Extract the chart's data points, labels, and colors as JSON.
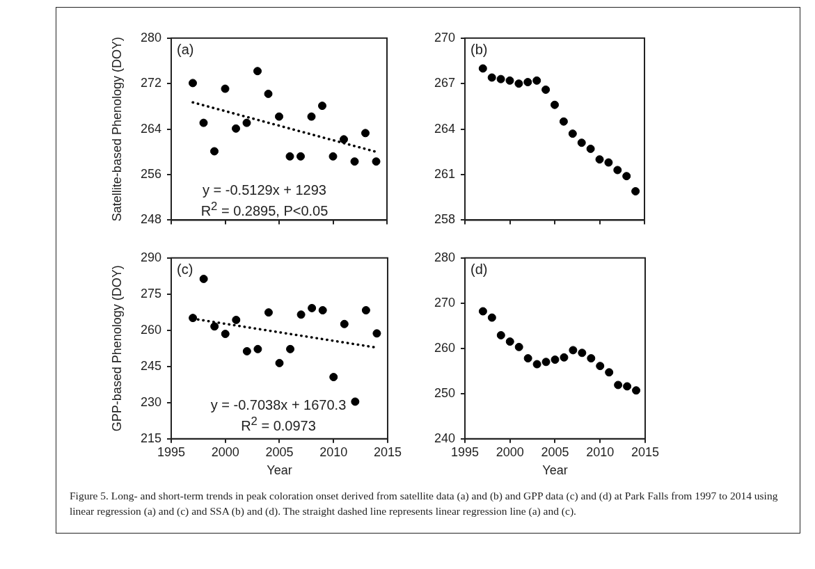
{
  "chart_data": [
    {
      "type": "scatter",
      "title": "(a)",
      "ylabel": "Satellite-based Phenology (DOY)",
      "xlim": [
        1995,
        2015
      ],
      "xticks": [
        1995,
        2000,
        2005,
        2010,
        2015
      ],
      "ylim": [
        248,
        280
      ],
      "yticks": [
        248,
        256,
        264,
        272,
        280
      ],
      "tick_labels": "y",
      "marker": "circle",
      "legend": false,
      "grid": false,
      "series": [
        {
          "type": "scatter",
          "color": "#000000",
          "x": [
            1997,
            1998,
            1999,
            2000,
            2001,
            2002,
            2003,
            2004,
            2005,
            2006,
            2007,
            2008,
            2009,
            2010,
            2011,
            2012,
            2013,
            2014
          ],
          "values": [
            272.1,
            265.1,
            260.1,
            271.1,
            264.1,
            265.1,
            274.2,
            270.2,
            266.2,
            259.2,
            259.2,
            266.2,
            268.1,
            259.2,
            262.2,
            258.3,
            263.3,
            258.3
          ]
        },
        {
          "type": "line",
          "color": "#000000",
          "x": [
            1997,
            2014
          ],
          "values": [
            268.7,
            260.0
          ],
          "line_style": "dotted",
          "marker": "none"
        }
      ],
      "annotations": [
        "y = -0.5129x + 1293",
        "R$^{2}$ = 0.2895, P<0.05"
      ]
    },
    {
      "type": "scatter",
      "title": "(b)",
      "xlim": [
        1995,
        2015
      ],
      "xticks": [
        1995,
        2000,
        2005,
        2010,
        2015
      ],
      "ylim": [
        258,
        270
      ],
      "yticks": [
        258,
        261,
        264,
        267,
        270
      ],
      "tick_labels": "y",
      "marker": "circle",
      "legend": false,
      "grid": false,
      "series": [
        {
          "type": "scatter",
          "color": "#000000",
          "x": [
            1997,
            1998,
            1999,
            2000,
            2001,
            2002,
            2003,
            2004,
            2005,
            2006,
            2007,
            2008,
            2009,
            2010,
            2011,
            2012,
            2013,
            2014
          ],
          "values": [
            268.0,
            267.4,
            267.3,
            267.2,
            267.0,
            267.1,
            267.2,
            266.6,
            265.6,
            264.5,
            263.7,
            263.1,
            262.7,
            262.0,
            261.8,
            261.3,
            260.9,
            259.9
          ]
        }
      ]
    },
    {
      "type": "scatter",
      "title": "(c)",
      "xlabel": "Year",
      "ylabel": "GPP-based Phenology (DOY)",
      "xlim": [
        1995,
        2015
      ],
      "xticks": [
        1995,
        2000,
        2005,
        2010,
        2015
      ],
      "ylim": [
        215,
        290
      ],
      "yticks": [
        215,
        230,
        245,
        260,
        275,
        290
      ],
      "marker": "circle",
      "legend": false,
      "grid": false,
      "series": [
        {
          "type": "scatter",
          "color": "#000000",
          "x": [
            1997,
            1998,
            1999,
            2000,
            2001,
            2002,
            2003,
            2004,
            2005,
            2006,
            2007,
            2008,
            2009,
            2010,
            2011,
            2012,
            2013,
            2014
          ],
          "values": [
            265.1,
            281.3,
            261.6,
            258.5,
            264.3,
            251.3,
            252.2,
            267.4,
            246.4,
            252.2,
            266.5,
            269.2,
            268.3,
            240.6,
            262.6,
            230.4,
            268.3,
            258.7
          ]
        },
        {
          "type": "line",
          "color": "#000000",
          "x": [
            1997,
            2014
          ],
          "values": [
            264.8,
            252.8
          ],
          "line_style": "dotted",
          "marker": "none"
        }
      ],
      "annotations": [
        "y = -0.7038x + 1670.3",
        "R$^{2}$ = 0.0973"
      ]
    },
    {
      "type": "scatter",
      "title": "(d)",
      "xlabel": "Year",
      "xlim": [
        1995,
        2015
      ],
      "xticks": [
        1995,
        2000,
        2005,
        2010,
        2015
      ],
      "ylim": [
        240,
        280
      ],
      "yticks": [
        240,
        250,
        260,
        270,
        280
      ],
      "marker": "circle",
      "legend": false,
      "grid": false,
      "series": [
        {
          "type": "scatter",
          "color": "#000000",
          "x": [
            1997,
            1998,
            1999,
            2000,
            2001,
            2002,
            2003,
            2004,
            2005,
            2006,
            2007,
            2008,
            2009,
            2010,
            2011,
            2012,
            2013,
            2014
          ],
          "values": [
            268.2,
            266.8,
            262.9,
            261.5,
            260.3,
            257.8,
            256.5,
            257.0,
            257.5,
            258.0,
            259.6,
            259.0,
            257.8,
            256.1,
            254.7,
            251.9,
            251.6,
            250.7
          ]
        }
      ],
      "annotations": [
        "Figure 5. Long- and short-term trends in peak coloration onset derived from satellite data (a) and (b) and GPP data (c) and (d) at Park Falls from 1997 to 2014 using linear regression (a) and (c) and SSA (b) and (d). The straight dashed line represents linear regression line (a) and (c)."
      ]
    }
  ]
}
